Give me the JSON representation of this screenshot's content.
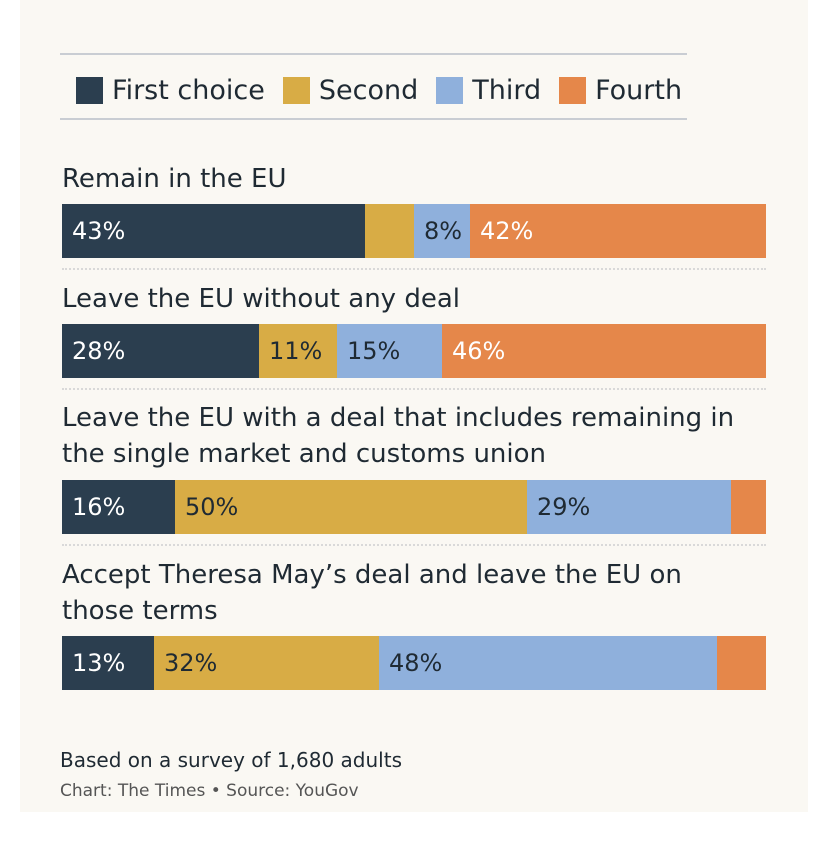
{
  "colors": {
    "first": "#2b3e4f",
    "second": "#d8ac45",
    "third": "#8fb0dc",
    "fourth": "#e5874a",
    "text_dark": "#ffffff",
    "text_light": "#1f2a33"
  },
  "legend": [
    {
      "label": "First choice",
      "color": "#2b3e4f"
    },
    {
      "label": "Second",
      "color": "#d8ac45"
    },
    {
      "label": "Third",
      "color": "#8fb0dc"
    },
    {
      "label": "Fourth",
      "color": "#e5874a"
    }
  ],
  "chart_data": {
    "type": "bar",
    "orientation": "horizontal",
    "stacked": true,
    "categories": [
      "Remain in the EU",
      "Leave the EU without any deal",
      "Leave the EU with a deal that includes remaining in the single market and customs union",
      "Accept Theresa May’s deal and leave the EU on those terms"
    ],
    "series": [
      {
        "name": "First choice",
        "values": [
          43,
          28,
          16,
          13
        ],
        "labels": [
          "43%",
          "28%",
          "16%",
          "13%"
        ]
      },
      {
        "name": "Second",
        "values": [
          7,
          11,
          50,
          32
        ],
        "labels": [
          "",
          "11%",
          "50%",
          "32%"
        ]
      },
      {
        "name": "Third",
        "values": [
          8,
          15,
          29,
          48
        ],
        "labels": [
          "8%",
          "15%",
          "29%",
          "48%"
        ]
      },
      {
        "name": "Fourth",
        "values": [
          42,
          46,
          5,
          7
        ],
        "labels": [
          "42%",
          "46%",
          "",
          ""
        ]
      }
    ],
    "xlim": [
      0,
      100
    ],
    "legend_position": "top"
  },
  "footer": {
    "note": "Based on a survey of 1,680 adults",
    "source": "Chart: The Times • Source: YouGov"
  }
}
